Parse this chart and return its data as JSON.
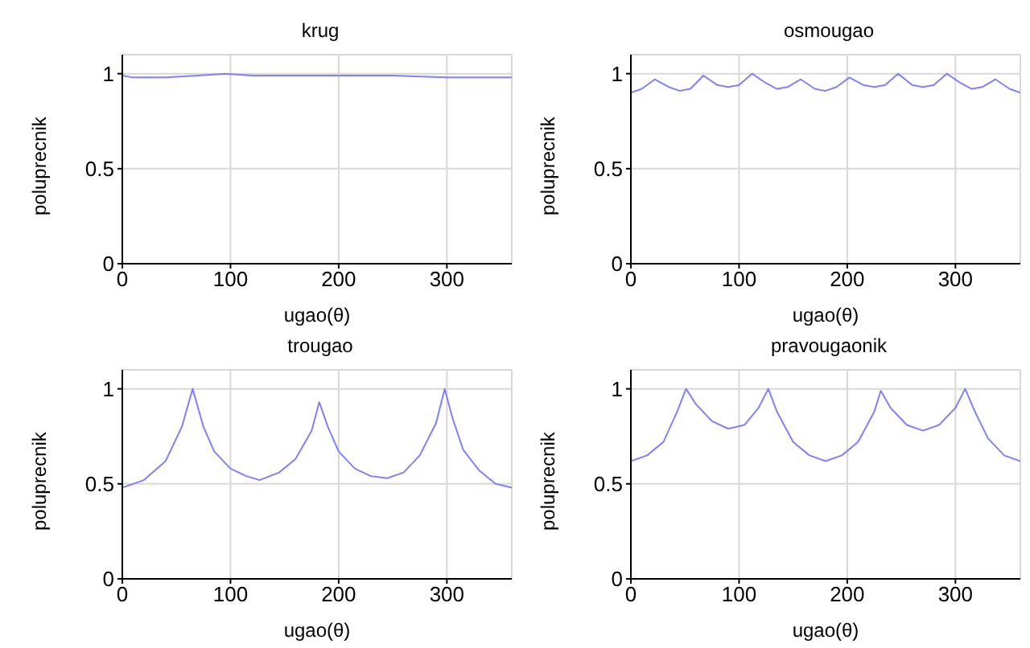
{
  "chart_data": [
    {
      "type": "line",
      "title": "krug",
      "xlabel": "ugao(θ)",
      "ylabel": "poluprecnik",
      "xlim": [
        0,
        360
      ],
      "xticks": [
        0,
        100,
        200,
        300
      ],
      "ylim": [
        0,
        1.1
      ],
      "yticks": [
        0,
        0.5,
        1
      ],
      "grid": true,
      "series": [
        {
          "color": "#8080ff",
          "x": [
            0,
            10,
            40,
            70,
            95,
            120,
            150,
            200,
            250,
            300,
            330,
            360
          ],
          "values": [
            0.99,
            0.98,
            0.98,
            0.99,
            1.0,
            0.99,
            0.99,
            0.99,
            0.99,
            0.98,
            0.98,
            0.98
          ]
        }
      ]
    },
    {
      "type": "line",
      "title": "osmougao",
      "xlabel": "ugao(θ)",
      "ylabel": "poluprecnik",
      "xlim": [
        0,
        360
      ],
      "xticks": [
        0,
        100,
        200,
        300
      ],
      "ylim": [
        0,
        1.1
      ],
      "yticks": [
        0,
        0.5,
        1
      ],
      "grid": true,
      "series": [
        {
          "color": "#8080ff",
          "x": [
            0,
            10,
            22,
            35,
            45,
            55,
            67,
            80,
            90,
            100,
            112,
            125,
            135,
            145,
            157,
            170,
            180,
            190,
            202,
            215,
            225,
            235,
            247,
            260,
            270,
            280,
            292,
            305,
            315,
            325,
            337,
            350,
            360
          ],
          "values": [
            0.9,
            0.92,
            0.97,
            0.93,
            0.91,
            0.92,
            0.99,
            0.94,
            0.93,
            0.94,
            1.0,
            0.95,
            0.92,
            0.93,
            0.97,
            0.92,
            0.91,
            0.93,
            0.98,
            0.94,
            0.93,
            0.94,
            1.0,
            0.94,
            0.93,
            0.94,
            1.0,
            0.95,
            0.92,
            0.93,
            0.97,
            0.92,
            0.9
          ]
        }
      ]
    },
    {
      "type": "line",
      "title": "trougao",
      "xlabel": "ugao(θ)",
      "ylabel": "poluprecnik",
      "xlim": [
        0,
        360
      ],
      "xticks": [
        0,
        100,
        200,
        300
      ],
      "ylim": [
        0,
        1.1
      ],
      "yticks": [
        0,
        0.5,
        1
      ],
      "grid": true,
      "series": [
        {
          "color": "#8080ff",
          "x": [
            0,
            20,
            40,
            55,
            65,
            75,
            85,
            100,
            115,
            127,
            145,
            160,
            175,
            182,
            190,
            200,
            215,
            230,
            245,
            260,
            275,
            290,
            298,
            305,
            315,
            330,
            345,
            360
          ],
          "values": [
            0.48,
            0.52,
            0.62,
            0.8,
            1.0,
            0.8,
            0.67,
            0.58,
            0.54,
            0.52,
            0.56,
            0.63,
            0.78,
            0.93,
            0.8,
            0.67,
            0.58,
            0.54,
            0.53,
            0.56,
            0.65,
            0.82,
            1.0,
            0.85,
            0.68,
            0.57,
            0.5,
            0.48
          ]
        }
      ]
    },
    {
      "type": "line",
      "title": "pravougaonik",
      "xlabel": "ugao(θ)",
      "ylabel": "poluprecnik",
      "xlim": [
        0,
        360
      ],
      "xticks": [
        0,
        100,
        200,
        300
      ],
      "ylim": [
        0,
        1.1
      ],
      "yticks": [
        0,
        0.5,
        1
      ],
      "grid": true,
      "series": [
        {
          "color": "#8080ff",
          "x": [
            0,
            15,
            30,
            42,
            51,
            60,
            75,
            90,
            105,
            118,
            127,
            135,
            150,
            165,
            180,
            195,
            210,
            225,
            231,
            240,
            255,
            270,
            285,
            300,
            309,
            318,
            330,
            345,
            360
          ],
          "values": [
            0.62,
            0.65,
            0.72,
            0.87,
            1.0,
            0.92,
            0.83,
            0.79,
            0.81,
            0.9,
            1.0,
            0.88,
            0.72,
            0.65,
            0.62,
            0.65,
            0.72,
            0.88,
            0.99,
            0.9,
            0.81,
            0.78,
            0.81,
            0.9,
            1.0,
            0.88,
            0.74,
            0.65,
            0.62
          ]
        }
      ]
    }
  ]
}
